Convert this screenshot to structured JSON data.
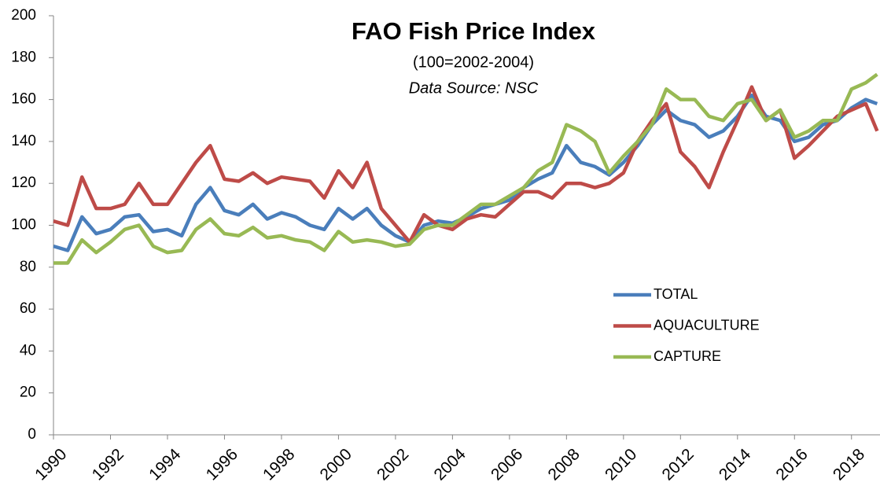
{
  "chart_data": {
    "type": "line",
    "title": "FAO Fish Price Index",
    "subtitle": "(100=2002-2004)",
    "source": "Data Source: NSC",
    "x": [
      1990,
      1990.5,
      1991,
      1991.5,
      1992,
      1992.5,
      1993,
      1993.5,
      1994,
      1994.5,
      1995,
      1995.5,
      1996,
      1996.5,
      1997,
      1997.5,
      1998,
      1998.5,
      1999,
      1999.5,
      2000,
      2000.5,
      2001,
      2001.5,
      2002,
      2002.5,
      2003,
      2003.5,
      2004,
      2004.5,
      2005,
      2005.5,
      2006,
      2006.5,
      2007,
      2007.5,
      2008,
      2008.5,
      2009,
      2009.5,
      2010,
      2010.5,
      2011,
      2011.5,
      2012,
      2012.5,
      2013,
      2013.5,
      2014,
      2014.5,
      2015,
      2015.5,
      2016,
      2016.5,
      2017,
      2017.5,
      2018,
      2018.5,
      2018.9
    ],
    "series": [
      {
        "name": "TOTAL",
        "color": "#4a7ebb",
        "values": [
          90,
          88,
          104,
          96,
          98,
          104,
          105,
          97,
          98,
          95,
          110,
          118,
          107,
          105,
          110,
          103,
          106,
          104,
          100,
          98,
          108,
          103,
          108,
          100,
          95,
          92,
          100,
          102,
          101,
          104,
          108,
          110,
          112,
          118,
          122,
          125,
          138,
          130,
          128,
          124,
          130,
          138,
          148,
          155,
          150,
          148,
          142,
          145,
          152,
          162,
          152,
          150,
          140,
          142,
          148,
          150,
          156,
          160,
          158
        ]
      },
      {
        "name": "AQUACULTURE",
        "color": "#be4b48",
        "values": [
          102,
          100,
          123,
          108,
          108,
          110,
          120,
          110,
          110,
          120,
          130,
          138,
          122,
          121,
          125,
          120,
          123,
          122,
          121,
          113,
          126,
          118,
          130,
          108,
          100,
          92,
          105,
          100,
          98,
          103,
          105,
          104,
          110,
          116,
          116,
          113,
          120,
          120,
          118,
          120,
          125,
          140,
          150,
          158,
          135,
          128,
          118,
          135,
          150,
          166,
          150,
          155,
          132,
          138,
          145,
          152,
          155,
          158,
          145
        ]
      },
      {
        "name": "CAPTURE",
        "color": "#98b954",
        "values": [
          82,
          82,
          93,
          87,
          92,
          98,
          100,
          90,
          87,
          88,
          98,
          103,
          96,
          95,
          99,
          94,
          95,
          93,
          92,
          88,
          97,
          92,
          93,
          92,
          90,
          91,
          98,
          100,
          100,
          105,
          110,
          110,
          114,
          118,
          126,
          130,
          148,
          145,
          140,
          125,
          133,
          140,
          148,
          165,
          160,
          160,
          152,
          150,
          158,
          160,
          150,
          155,
          142,
          145,
          150,
          150,
          165,
          168,
          172
        ]
      }
    ],
    "xlim": [
      1990,
      2019
    ],
    "xticks": [
      1990,
      1992,
      1994,
      1996,
      1998,
      2000,
      2002,
      2004,
      2006,
      2008,
      2010,
      2012,
      2014,
      2016,
      2018
    ],
    "ylim": [
      0,
      200
    ],
    "yticks": [
      0,
      20,
      40,
      60,
      80,
      100,
      120,
      140,
      160,
      180,
      200
    ],
    "grid": false
  }
}
